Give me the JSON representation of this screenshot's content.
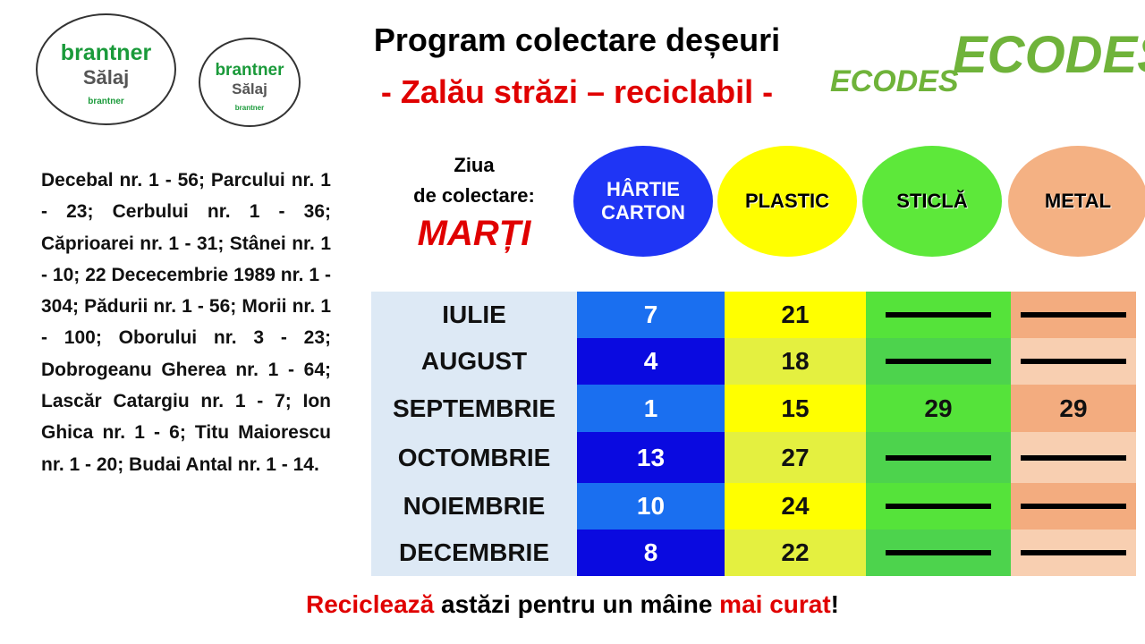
{
  "header": {
    "title": "Program colectare deșeuri",
    "subtitle": "- Zalău străzi – reciclabil -"
  },
  "logos": {
    "brand": "brantner",
    "region": "Sălaj",
    "small": "brantner",
    "partner": "ECODES"
  },
  "streets": "Decebal nr. 1 - 56; Parcului nr. 1 - 23; Cerbului nr. 1 - 36; Căprioarei nr. 1 - 31; Stânei nr. 1 - 10; 22 Dececembrie 1989 nr. 1 - 304; Pădurii nr. 1 - 56; Morii nr. 1 - 100; Oborului nr. 3 - 23; Dobrogeanu Gherea nr. 1 - 64; Lascăr Catargiu nr. 1 - 7; Ion Ghica nr. 1 - 6; Titu Maiorescu nr. 1 - 20; Budai Antal nr. 1 - 14.",
  "day": {
    "label1": "Ziua",
    "label2": "de colectare:",
    "value": "MARȚI"
  },
  "bins": [
    [
      "HÂRTIE",
      "CARTON"
    ],
    [
      "PLASTIC"
    ],
    [
      "STICLĂ"
    ],
    [
      "METAL"
    ]
  ],
  "table": {
    "rows": [
      [
        "IULIE",
        7,
        21,
        null,
        null
      ],
      [
        "AUGUST",
        4,
        18,
        null,
        null
      ],
      [
        "SEPTEMBRIE",
        1,
        15,
        29,
        29
      ],
      [
        "OCTOMBRIE",
        13,
        27,
        null,
        null
      ],
      [
        "NOIEMBRIE",
        10,
        24,
        null,
        null
      ],
      [
        "DECEMBRIE",
        8,
        22,
        null,
        null
      ]
    ]
  },
  "footer": {
    "a": "Reciclează",
    "b": " astăzi pentru un mâine ",
    "c": "mai curat",
    "d": "!"
  }
}
